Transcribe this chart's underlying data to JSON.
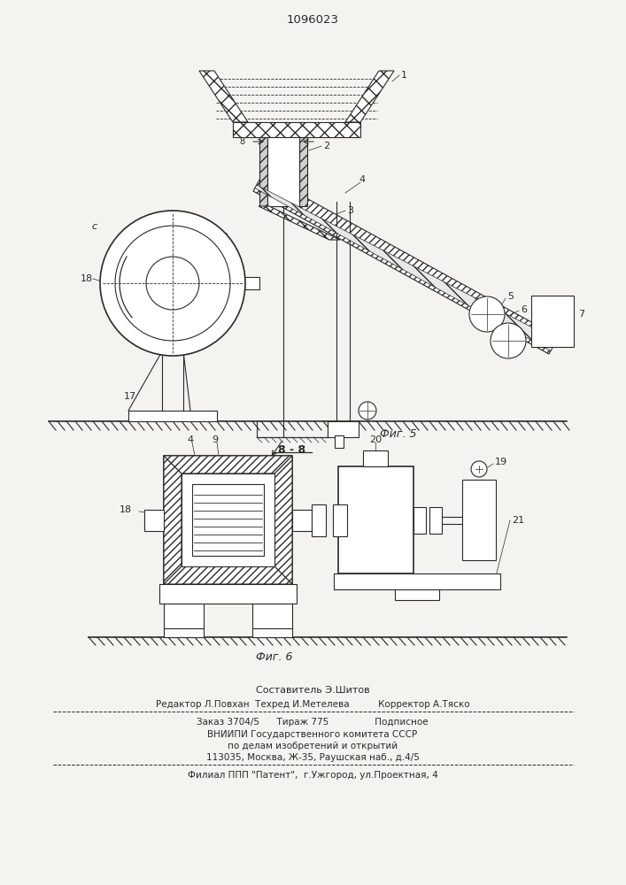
{
  "title": "1096023",
  "fig5_caption": "Фиг. 5",
  "fig6_caption": "Фиг. 6",
  "section_label": "8 - 8",
  "footer_line1": "Составитель Э.Шитов",
  "footer_line2": "Редактор Л.Повхан  Техред И.Метелева          Корректор А.Тяско",
  "footer_line3": "Заказ 3704/5      Тираж 775                Подписное",
  "footer_line4": "ВНИИПИ Государственного комитета СССР",
  "footer_line5": "по делам изобретений и открытий",
  "footer_line6": "113035, Москва, Ж-35, Раушская наб., д.4/5",
  "footer_line7": "Филиал ППП \"Патент\",  г.Ужгород, ул.Проектная, 4",
  "bg_color": "#f5f3ef",
  "line_color": "#2a2a2a"
}
